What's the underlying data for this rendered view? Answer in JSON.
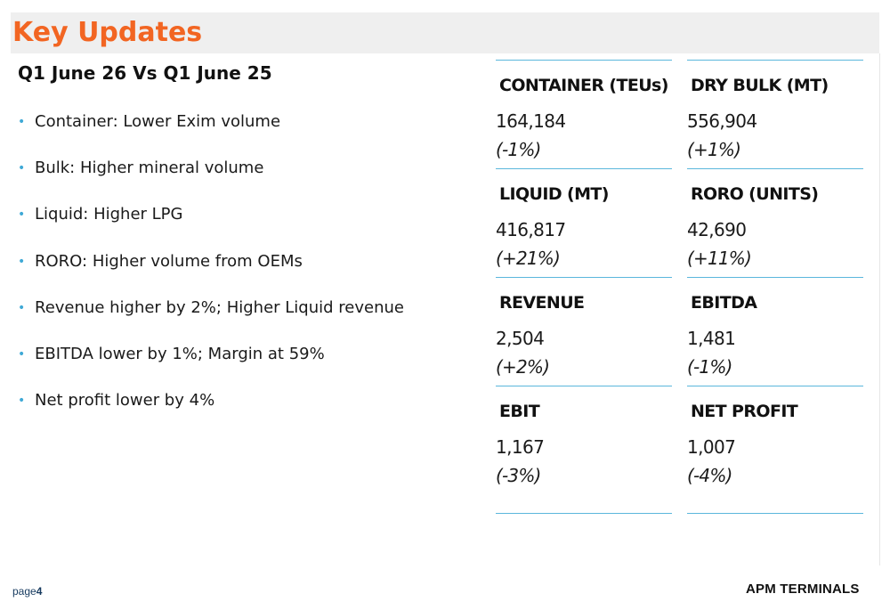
{
  "slide": {
    "title": "Key Updates",
    "subtitle": "Q1 June 26 Vs Q1 June 25"
  },
  "bullets": [
    "Container: Lower Exim volume",
    "Bulk: Higher mineral volume",
    "Liquid: Higher LPG",
    "RORO: Higher volume from OEMs",
    "Revenue higher by 2%; Higher Liquid revenue",
    "EBITDA lower by 1%; Margin at 59%",
    "Net profit lower by 4%"
  ],
  "bullet_glyph": "•",
  "metrics": [
    {
      "label": "CONTAINER (TEUs)",
      "value": "164,184",
      "change": "(-1%)"
    },
    {
      "label": "DRY BULK (MT)",
      "value": "556,904",
      "change": "(+1%)"
    },
    {
      "label": "LIQUID (MT)",
      "value": "416,817",
      "change": "(+21%)"
    },
    {
      "label": "RORO (UNITS)",
      "value": "42,690",
      "change": "(+11%)"
    },
    {
      "label": "REVENUE",
      "value": "2,504",
      "change": "(+2%)"
    },
    {
      "label": "EBITDA",
      "value": "1,481",
      "change": "(-1%)"
    },
    {
      "label": "EBIT",
      "value": "1,167",
      "change": "(-3%)"
    },
    {
      "label": "NET PROFIT",
      "value": "1,007",
      "change": "(-4%)"
    }
  ],
  "footer": {
    "page_prefix": "page",
    "page_number": "4",
    "brand": "APM TERMINALS"
  },
  "colors": {
    "title": "#f26522",
    "title_bar": "#efefef",
    "bullet": "#3fa9d6",
    "rule": "#5bb7dc",
    "footer_text": "#163a5f"
  }
}
